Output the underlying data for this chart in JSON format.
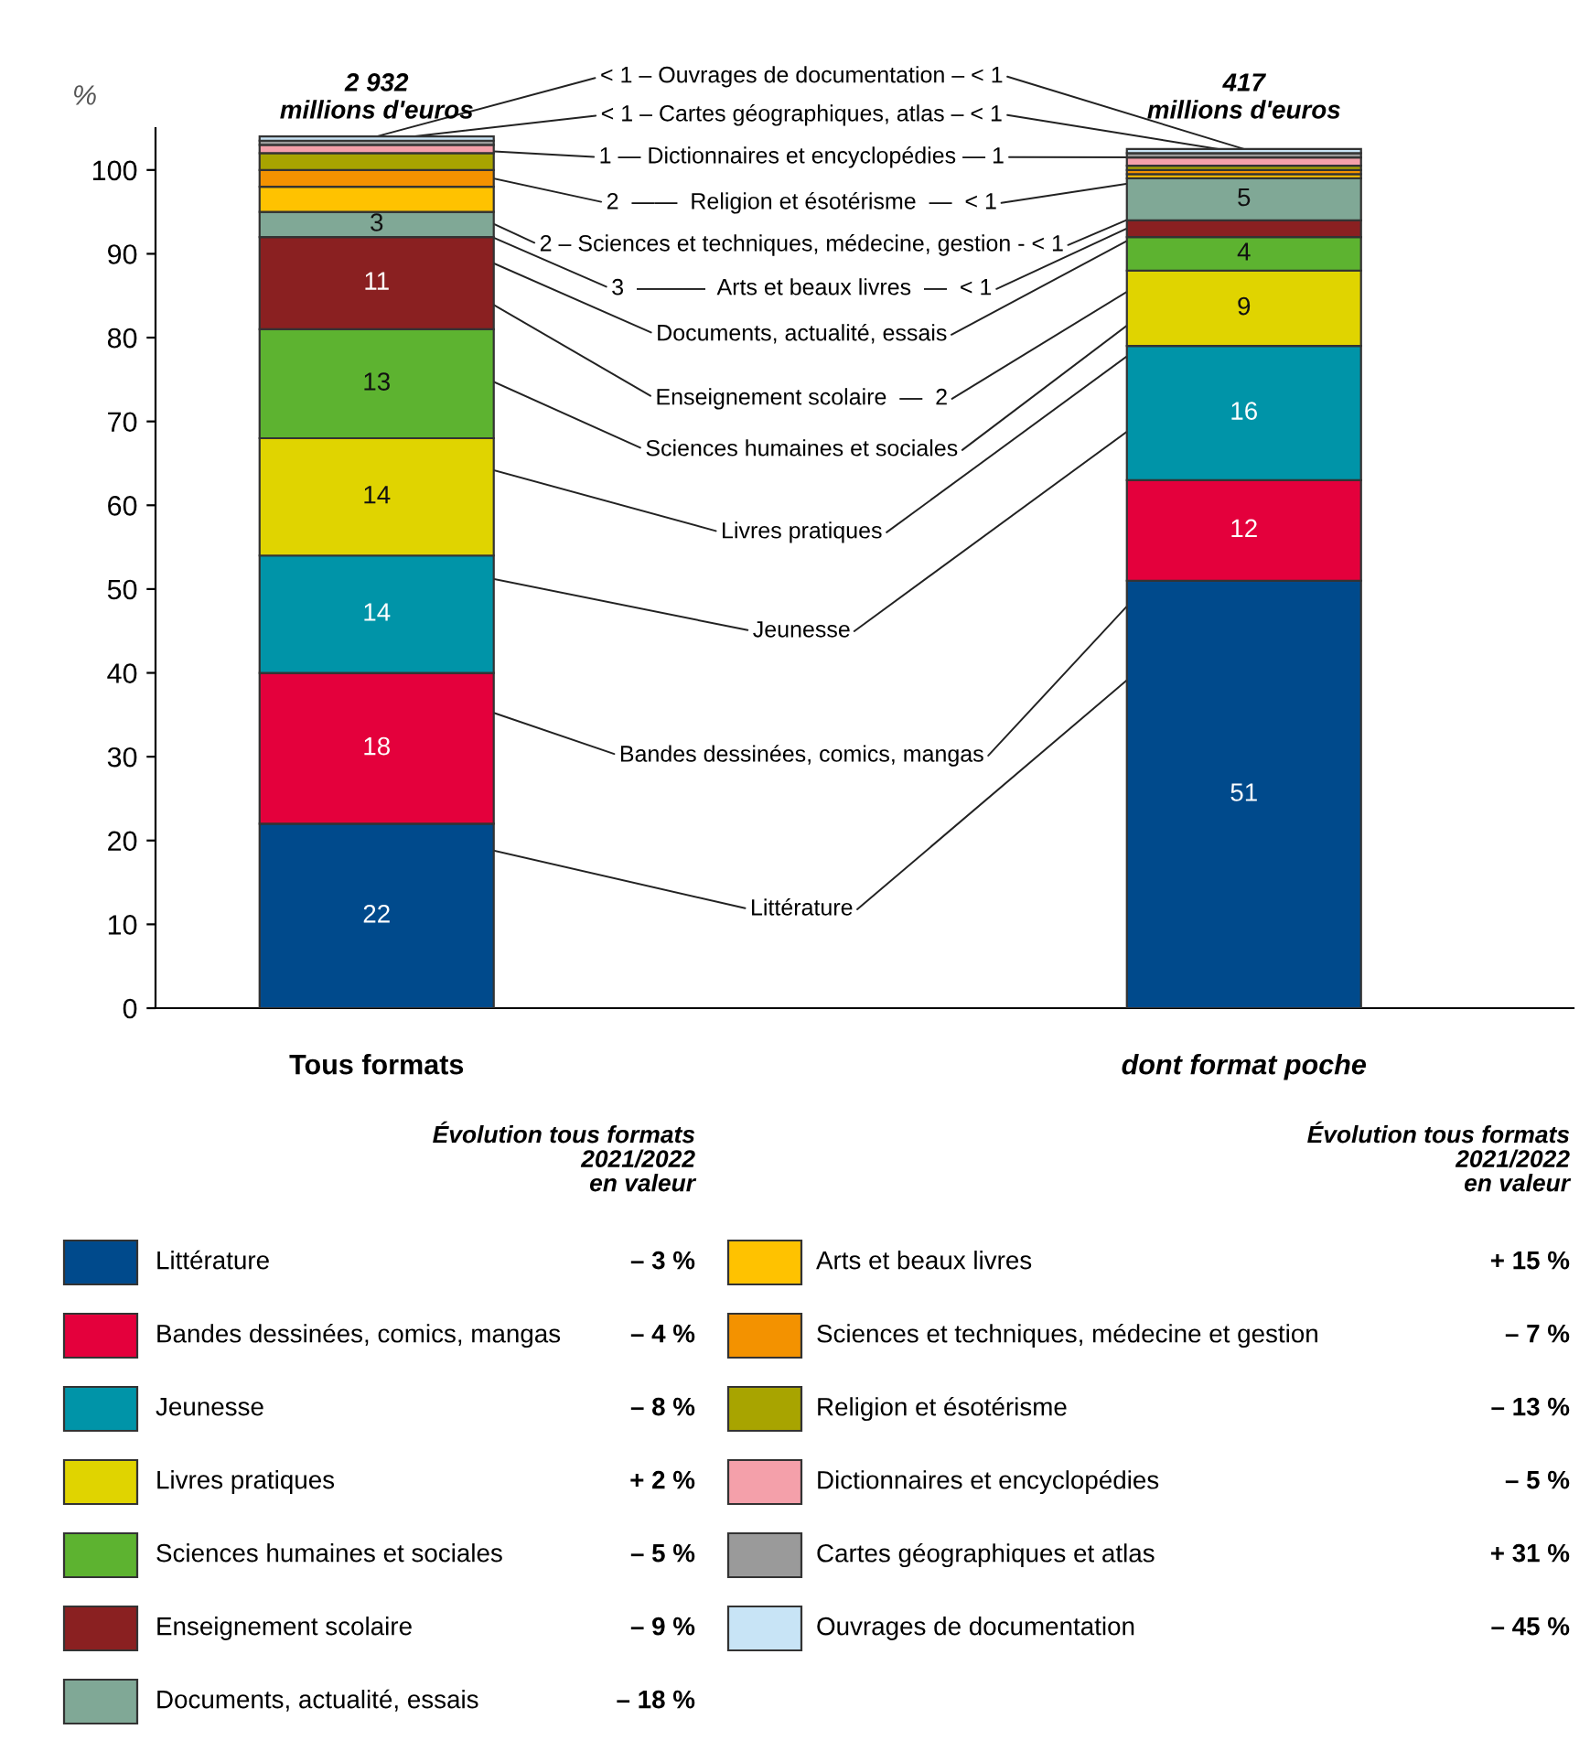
{
  "chart_data": {
    "type": "bar",
    "stacked": true,
    "ylabel": "%",
    "legend_title": "Évolution tous formats\n2021/2022\nen valeur",
    "categories": [
      "Tous formats",
      "dont format poche"
    ],
    "ylim": [
      0,
      105
    ],
    "yticks": [
      0,
      10,
      20,
      30,
      40,
      50,
      60,
      70,
      80,
      90,
      100
    ],
    "legend": "bottom",
    "series": [
      {
        "name": "Littérature",
        "color": "#004a8c",
        "values": [
          22,
          51
        ],
        "value_labels": [
          "22",
          "51"
        ]
      },
      {
        "name": "Bandes dessinées, comics, mangas",
        "color": "#e4003c",
        "values": [
          18,
          12
        ],
        "value_labels": [
          "18",
          "12"
        ]
      },
      {
        "name": "Jeunesse",
        "color": "#0094a8",
        "values": [
          14,
          16
        ],
        "value_labels": [
          "14",
          "16"
        ]
      },
      {
        "name": "Livres pratiques",
        "color": "#e0d400",
        "values": [
          14,
          9
        ],
        "value_labels": [
          "14",
          "9"
        ]
      },
      {
        "name": "Sciences humaines et sociales",
        "color": "#5db330",
        "values": [
          13,
          4
        ],
        "value_labels": [
          "13",
          "4"
        ]
      },
      {
        "name": "Enseignement scolaire",
        "color": "#8a2021",
        "values": [
          11,
          2
        ],
        "value_labels": [
          "11",
          null
        ]
      },
      {
        "name": "Documents, actualité, essais",
        "color": "#80a896",
        "values": [
          3,
          5
        ],
        "value_labels": [
          "3",
          "5"
        ]
      },
      {
        "name": "Arts et beaux livres",
        "color": "#ffc200",
        "values": [
          3,
          0.5
        ],
        "value_labels": [
          null,
          null
        ]
      },
      {
        "name": "Sciences et techniques, médecine et gestion",
        "color": "#f39200",
        "values": [
          2,
          0.5
        ],
        "value_labels": [
          null,
          null
        ]
      },
      {
        "name": "Religion et ésotérisme",
        "color": "#a8a400",
        "values": [
          2,
          0.5
        ],
        "value_labels": [
          null,
          null
        ]
      },
      {
        "name": "Dictionnaires et encyclopédies",
        "color": "#f4a0aa",
        "values": [
          1,
          1
        ],
        "value_labels": [
          null,
          null
        ]
      },
      {
        "name": "Cartes géographiques et atlas",
        "color": "#9a9a9a",
        "values": [
          0.5,
          0.5
        ],
        "value_labels": [
          null,
          null
        ]
      },
      {
        "name": "Ouvrages de documentation",
        "color": "#c8e4f6",
        "values": [
          0.5,
          0.5
        ],
        "value_labels": [
          null,
          null
        ]
      }
    ],
    "annotations": [
      {
        "text": "Littérature",
        "x": "Tous formats",
        "y": 22
      },
      {
        "text": "Bandes dessinées, comics, mangas",
        "x": "Tous formats",
        "y": 40
      },
      {
        "text": "Jeunesse",
        "x": "Tous formats",
        "y": 54
      },
      {
        "text": "Livres pratiques",
        "x": "Tous formats",
        "y": 68
      },
      {
        "text": "Sciences humaines et sociales",
        "x": "Tous formats",
        "y": 81
      },
      {
        "text": "Enseignement scolaire  —  2",
        "x": "Tous formats",
        "y": 92
      },
      {
        "text": "Documents, actualité, essais",
        "x": "Tous formats",
        "y": 95
      },
      {
        "text": "3  ———  Arts et beaux livres  —  < 1",
        "x": "Tous formats",
        "y": 98
      },
      {
        "text": "2 – Sciences et techniques, médecine, gestion - < 1",
        "x": "Tous formats",
        "y": 100
      },
      {
        "text": "2  ——  Religion et ésotérisme  —  < 1",
        "x": "Tous formats",
        "y": 102
      },
      {
        "text": "1 — Dictionnaires et encyclopédies — 1",
        "x": "Tous formats",
        "y": 103
      },
      {
        "text": "< 1 – Cartes géographiques, atlas – < 1",
        "x": "Tous formats",
        "y": 103.5
      },
      {
        "text": "< 1 – Ouvrages de documentation – < 1",
        "x": "Tous formats",
        "y": 104
      },
      "2 932\nmillions d'euros",
      "417\nmillions d'euros",
      "– 3 %",
      "– 4 %",
      "– 8 %",
      "+ 2 %",
      "– 5 %",
      "– 9 %",
      "– 18 %",
      "+ 15 %",
      "– 7 %",
      "– 13 %",
      "– 5 %",
      "+ 31 %",
      "– 45 %"
    ]
  }
}
